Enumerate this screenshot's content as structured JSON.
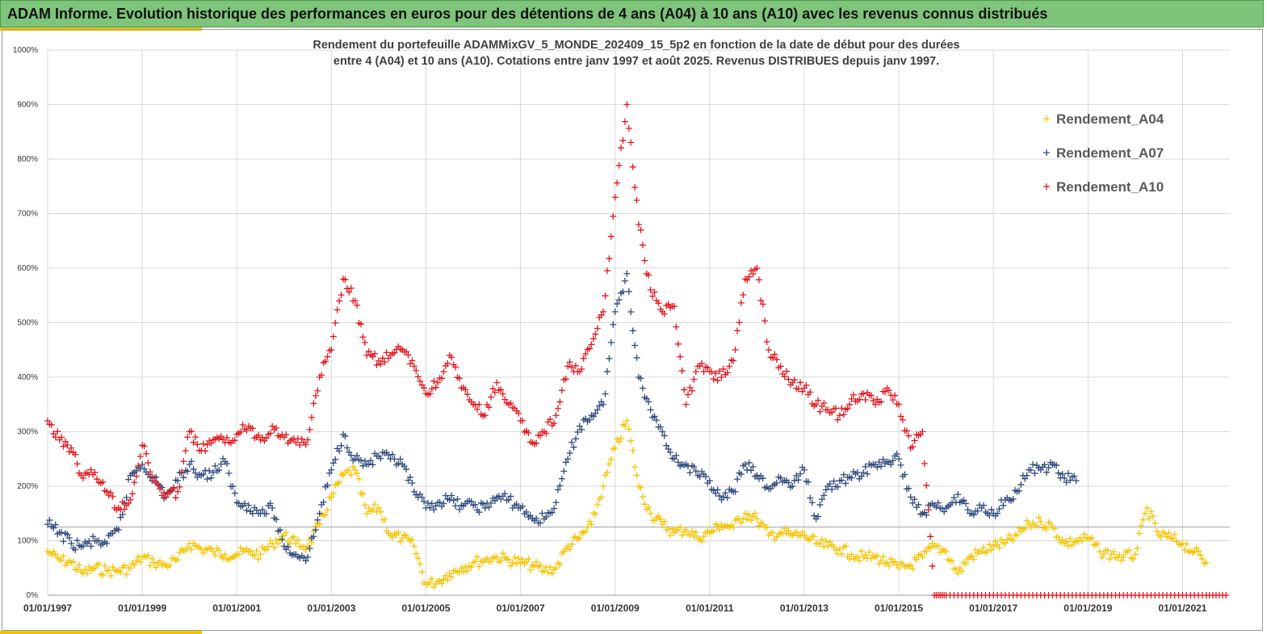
{
  "banner": {
    "title": "ADAM Informe. Evolution historique des performances en euros pour des détentions de 4 ans (A04) à 10 ans (A10) avec les revenus connus distribués"
  },
  "colors": {
    "A04": "#f5c400",
    "A07": "#2f4a7c",
    "A10": "#e0161d",
    "banner": "#7ec47a",
    "grid": "#d9d9d9"
  },
  "chart_data": {
    "type": "scatter",
    "title_lines": [
      "Rendement du portefeuille ADAMMixGV_5_MONDE_202409_15_5p2 en fonction de la date de début pour des durées",
      "entre 4 (A04) et 10 ans (A10). Cotations entre janv 1997 et août 2025. Revenus DISTRIBUES depuis janv 1997."
    ],
    "xlabel": "",
    "ylabel": "",
    "x_range": [
      "1997-01-01",
      "2022-01-01"
    ],
    "ylim": [
      0,
      1000
    ],
    "y_ticks": [
      "0%",
      "100%",
      "200%",
      "300%",
      "400%",
      "500%",
      "600%",
      "700%",
      "800%",
      "900%",
      "1000%"
    ],
    "x_ticks": [
      "01/01/1997",
      "01/01/1999",
      "01/01/2001",
      "01/01/2003",
      "01/01/2005",
      "01/01/2007",
      "01/01/2009",
      "01/01/2011",
      "01/01/2013",
      "01/01/2015",
      "01/01/2017",
      "01/01/2019",
      "01/01/2021"
    ],
    "reference_line_y": 125,
    "legend_position": "top-right",
    "grid": true,
    "series": [
      {
        "name": "Rendement_A04",
        "points": [
          [
            "1997-01",
            80
          ],
          [
            "1997-04",
            65
          ],
          [
            "1997-07",
            60
          ],
          [
            "1997-10",
            40
          ],
          [
            "1998-01",
            50
          ],
          [
            "1998-04",
            45
          ],
          [
            "1998-07",
            45
          ],
          [
            "1998-10",
            50
          ],
          [
            "1999-01",
            70
          ],
          [
            "1999-04",
            60
          ],
          [
            "1999-07",
            55
          ],
          [
            "1999-10",
            65
          ],
          [
            "2000-01",
            95
          ],
          [
            "2000-04",
            85
          ],
          [
            "2000-07",
            80
          ],
          [
            "2000-10",
            75
          ],
          [
            "2001-01",
            75
          ],
          [
            "2001-04",
            80
          ],
          [
            "2001-07",
            75
          ],
          [
            "2001-10",
            95
          ],
          [
            "2002-01",
            110
          ],
          [
            "2002-04",
            95
          ],
          [
            "2002-07",
            90
          ],
          [
            "2002-10",
            130
          ],
          [
            "2003-01",
            180
          ],
          [
            "2003-04",
            220
          ],
          [
            "2003-07",
            230
          ],
          [
            "2003-10",
            150
          ],
          [
            "2004-01",
            160
          ],
          [
            "2004-04",
            110
          ],
          [
            "2004-07",
            105
          ],
          [
            "2004-10",
            90
          ],
          [
            "2005-01",
            20
          ],
          [
            "2005-04",
            25
          ],
          [
            "2005-07",
            40
          ],
          [
            "2005-10",
            50
          ],
          [
            "2006-01",
            60
          ],
          [
            "2006-04",
            65
          ],
          [
            "2006-07",
            70
          ],
          [
            "2006-10",
            65
          ],
          [
            "2007-01",
            60
          ],
          [
            "2007-04",
            55
          ],
          [
            "2007-07",
            45
          ],
          [
            "2007-10",
            50
          ],
          [
            "2008-01",
            90
          ],
          [
            "2008-04",
            105
          ],
          [
            "2008-07",
            130
          ],
          [
            "2008-10",
            200
          ],
          [
            "2009-01",
            270
          ],
          [
            "2009-04",
            320
          ],
          [
            "2009-07",
            200
          ],
          [
            "2009-10",
            150
          ],
          [
            "2010-01",
            130
          ],
          [
            "2010-04",
            115
          ],
          [
            "2010-07",
            120
          ],
          [
            "2010-10",
            105
          ],
          [
            "2011-01",
            115
          ],
          [
            "2011-04",
            130
          ],
          [
            "2011-07",
            125
          ],
          [
            "2011-10",
            150
          ],
          [
            "2012-01",
            140
          ],
          [
            "2012-04",
            110
          ],
          [
            "2012-07",
            115
          ],
          [
            "2012-10",
            110
          ],
          [
            "2013-01",
            110
          ],
          [
            "2013-04",
            95
          ],
          [
            "2013-07",
            90
          ],
          [
            "2013-10",
            85
          ],
          [
            "2014-01",
            75
          ],
          [
            "2014-04",
            70
          ],
          [
            "2014-07",
            70
          ],
          [
            "2014-10",
            60
          ],
          [
            "2015-01",
            50
          ],
          [
            "2015-04",
            55
          ],
          [
            "2015-07",
            70
          ],
          [
            "2015-10",
            90
          ],
          [
            "2016-01",
            80
          ],
          [
            "2016-04",
            40
          ],
          [
            "2016-07",
            70
          ],
          [
            "2016-10",
            80
          ],
          [
            "2017-01",
            90
          ],
          [
            "2017-04",
            95
          ],
          [
            "2017-07",
            110
          ],
          [
            "2017-10",
            130
          ],
          [
            "2018-01",
            135
          ],
          [
            "2018-04",
            125
          ],
          [
            "2018-07",
            95
          ],
          [
            "2018-10",
            100
          ],
          [
            "2019-01",
            105
          ],
          [
            "2019-04",
            80
          ],
          [
            "2019-07",
            75
          ],
          [
            "2019-10",
            70
          ],
          [
            "2020-01",
            75
          ],
          [
            "2020-04",
            160
          ],
          [
            "2020-07",
            110
          ],
          [
            "2020-10",
            105
          ],
          [
            "2021-01",
            95
          ],
          [
            "2021-04",
            80
          ],
          [
            "2021-07",
            60
          ]
        ]
      },
      {
        "name": "Rendement_A07",
        "points": [
          [
            "1997-01",
            130
          ],
          [
            "1997-04",
            115
          ],
          [
            "1997-07",
            95
          ],
          [
            "1997-10",
            90
          ],
          [
            "1998-01",
            100
          ],
          [
            "1998-04",
            95
          ],
          [
            "1998-07",
            120
          ],
          [
            "1998-10",
            220
          ],
          [
            "1999-01",
            240
          ],
          [
            "1999-04",
            215
          ],
          [
            "1999-07",
            180
          ],
          [
            "1999-10",
            210
          ],
          [
            "2000-01",
            240
          ],
          [
            "2000-04",
            220
          ],
          [
            "2000-07",
            225
          ],
          [
            "2000-10",
            245
          ],
          [
            "2001-01",
            170
          ],
          [
            "2001-04",
            165
          ],
          [
            "2001-07",
            150
          ],
          [
            "2001-10",
            160
          ],
          [
            "2002-01",
            90
          ],
          [
            "2002-04",
            75
          ],
          [
            "2002-07",
            70
          ],
          [
            "2002-10",
            150
          ],
          [
            "2003-01",
            230
          ],
          [
            "2003-04",
            295
          ],
          [
            "2003-07",
            250
          ],
          [
            "2003-10",
            240
          ],
          [
            "2004-01",
            255
          ],
          [
            "2004-04",
            250
          ],
          [
            "2004-07",
            240
          ],
          [
            "2004-10",
            190
          ],
          [
            "2005-01",
            160
          ],
          [
            "2005-04",
            170
          ],
          [
            "2005-07",
            175
          ],
          [
            "2005-10",
            165
          ],
          [
            "2006-01",
            165
          ],
          [
            "2006-04",
            160
          ],
          [
            "2006-07",
            180
          ],
          [
            "2006-10",
            175
          ],
          [
            "2007-01",
            160
          ],
          [
            "2007-04",
            140
          ],
          [
            "2007-07",
            140
          ],
          [
            "2007-10",
            170
          ],
          [
            "2008-01",
            250
          ],
          [
            "2008-04",
            310
          ],
          [
            "2008-07",
            330
          ],
          [
            "2008-10",
            350
          ],
          [
            "2009-01",
            520
          ],
          [
            "2009-04",
            590
          ],
          [
            "2009-07",
            400
          ],
          [
            "2009-10",
            340
          ],
          [
            "2010-01",
            300
          ],
          [
            "2010-04",
            250
          ],
          [
            "2010-07",
            240
          ],
          [
            "2010-10",
            220
          ],
          [
            "2011-01",
            210
          ],
          [
            "2011-04",
            175
          ],
          [
            "2011-07",
            190
          ],
          [
            "2011-10",
            240
          ],
          [
            "2012-01",
            220
          ],
          [
            "2012-04",
            195
          ],
          [
            "2012-07",
            215
          ],
          [
            "2012-10",
            200
          ],
          [
            "2013-01",
            230
          ],
          [
            "2013-04",
            140
          ],
          [
            "2013-07",
            200
          ],
          [
            "2013-10",
            210
          ],
          [
            "2014-01",
            215
          ],
          [
            "2014-04",
            225
          ],
          [
            "2014-07",
            240
          ],
          [
            "2014-10",
            245
          ],
          [
            "2015-01",
            250
          ],
          [
            "2015-04",
            180
          ],
          [
            "2015-07",
            150
          ],
          [
            "2015-10",
            165
          ],
          [
            "2016-01",
            160
          ],
          [
            "2016-04",
            185
          ],
          [
            "2016-07",
            150
          ],
          [
            "2016-10",
            160
          ],
          [
            "2017-01",
            150
          ],
          [
            "2017-04",
            175
          ],
          [
            "2017-07",
            190
          ],
          [
            "2017-10",
            230
          ],
          [
            "2018-01",
            230
          ],
          [
            "2018-04",
            240
          ],
          [
            "2018-07",
            215
          ],
          [
            "2018-10",
            210
          ]
        ]
      },
      {
        "name": "Rendement_A10",
        "points": [
          [
            "1997-01",
            320
          ],
          [
            "1997-04",
            285
          ],
          [
            "1997-07",
            270
          ],
          [
            "1997-10",
            215
          ],
          [
            "1998-01",
            225
          ],
          [
            "1998-04",
            190
          ],
          [
            "1998-07",
            160
          ],
          [
            "1998-10",
            175
          ],
          [
            "1999-01",
            275
          ],
          [
            "1999-04",
            210
          ],
          [
            "1999-07",
            180
          ],
          [
            "1999-10",
            190
          ],
          [
            "2000-01",
            300
          ],
          [
            "2000-04",
            265
          ],
          [
            "2000-07",
            285
          ],
          [
            "2000-10",
            280
          ],
          [
            "2001-01",
            295
          ],
          [
            "2001-04",
            310
          ],
          [
            "2001-07",
            285
          ],
          [
            "2001-10",
            310
          ],
          [
            "2002-01",
            290
          ],
          [
            "2002-04",
            280
          ],
          [
            "2002-07",
            285
          ],
          [
            "2002-10",
            400
          ],
          [
            "2003-01",
            450
          ],
          [
            "2003-04",
            580
          ],
          [
            "2003-07",
            540
          ],
          [
            "2003-10",
            440
          ],
          [
            "2004-01",
            430
          ],
          [
            "2004-04",
            440
          ],
          [
            "2004-07",
            450
          ],
          [
            "2004-10",
            420
          ],
          [
            "2005-01",
            370
          ],
          [
            "2005-04",
            390
          ],
          [
            "2005-07",
            440
          ],
          [
            "2005-10",
            380
          ],
          [
            "2006-01",
            350
          ],
          [
            "2006-04",
            330
          ],
          [
            "2006-07",
            390
          ],
          [
            "2006-10",
            350
          ],
          [
            "2007-01",
            320
          ],
          [
            "2007-04",
            280
          ],
          [
            "2007-07",
            300
          ],
          [
            "2007-10",
            330
          ],
          [
            "2008-01",
            420
          ],
          [
            "2008-04",
            410
          ],
          [
            "2008-07",
            460
          ],
          [
            "2008-10",
            520
          ],
          [
            "2009-01",
            730
          ],
          [
            "2009-04",
            900
          ],
          [
            "2009-07",
            680
          ],
          [
            "2009-10",
            560
          ],
          [
            "2010-01",
            520
          ],
          [
            "2010-04",
            530
          ],
          [
            "2010-07",
            350
          ],
          [
            "2010-10",
            420
          ],
          [
            "2011-01",
            410
          ],
          [
            "2011-04",
            400
          ],
          [
            "2011-07",
            430
          ],
          [
            "2011-10",
            580
          ],
          [
            "2012-01",
            600
          ],
          [
            "2012-04",
            450
          ],
          [
            "2012-07",
            420
          ],
          [
            "2012-10",
            390
          ],
          [
            "2013-01",
            380
          ],
          [
            "2013-04",
            350
          ],
          [
            "2013-07",
            340
          ],
          [
            "2013-10",
            330
          ],
          [
            "2014-01",
            360
          ],
          [
            "2014-04",
            370
          ],
          [
            "2014-07",
            350
          ],
          [
            "2014-10",
            380
          ],
          [
            "2015-01",
            350
          ],
          [
            "2015-04",
            270
          ],
          [
            "2015-07",
            300
          ],
          [
            "2015-10",
            0
          ],
          [
            "2016-01",
            0
          ],
          [
            "2016-07",
            0
          ],
          [
            "2017-01",
            0
          ],
          [
            "2017-07",
            0
          ],
          [
            "2018-01",
            0
          ],
          [
            "2018-07",
            0
          ],
          [
            "2019-01",
            0
          ],
          [
            "2019-07",
            0
          ],
          [
            "2020-01",
            0
          ],
          [
            "2020-07",
            0
          ],
          [
            "2021-01",
            0
          ],
          [
            "2021-07",
            0
          ],
          [
            "2021-12",
            0
          ]
        ]
      }
    ]
  }
}
